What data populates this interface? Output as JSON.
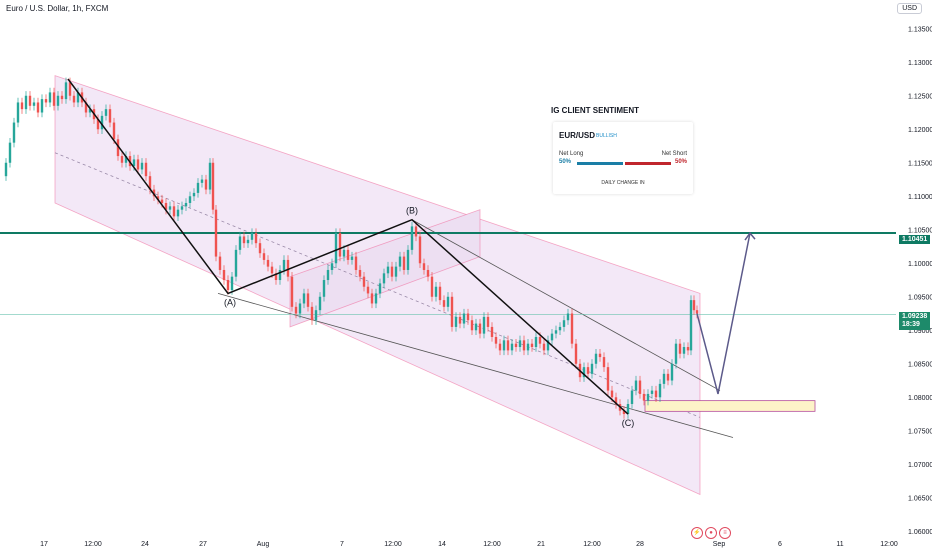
{
  "header": {
    "title": "Euro / U.S. Dollar, 1h, FXCM",
    "currency": "USD"
  },
  "chart_data": {
    "type": "candlestick",
    "title": "Euro / U.S. Dollar, 1h, FXCM",
    "y_ticks": [
      "1.13500",
      "1.13000",
      "1.12500",
      "1.12000",
      "1.11500",
      "1.11000",
      "1.10500",
      "1.10000",
      "1.09500",
      "1.09000",
      "1.08500",
      "1.08000",
      "1.07500",
      "1.07000",
      "1.06500",
      "1.06000"
    ],
    "x_ticks": [
      "17",
      "12:00",
      "24",
      "27",
      "Aug",
      "7",
      "12:00",
      "14",
      "12:00",
      "21",
      "12:00",
      "28",
      "Sep",
      "6",
      "11",
      "12:00"
    ],
    "ylim": [
      1.059,
      1.1375
    ],
    "horizontal_level": {
      "value": 1.10451,
      "label": "1.10451"
    },
    "current_price": {
      "value": 1.09238,
      "label": "1.09238",
      "countdown": "18:39"
    },
    "wave_labels": [
      "(A)",
      "(B)",
      "(C)"
    ],
    "price_path": [
      [
        0,
        1.113
      ],
      [
        6,
        1.115
      ],
      [
        10,
        1.118
      ],
      [
        14,
        1.121
      ],
      [
        18,
        1.124
      ],
      [
        22,
        1.123
      ],
      [
        26,
        1.125
      ],
      [
        30,
        1.1235
      ],
      [
        34,
        1.124
      ],
      [
        38,
        1.1225
      ],
      [
        42,
        1.1245
      ],
      [
        46,
        1.124
      ],
      [
        50,
        1.1255
      ],
      [
        54,
        1.1235
      ],
      [
        58,
        1.125
      ],
      [
        62,
        1.1245
      ],
      [
        66,
        1.127
      ],
      [
        70,
        1.125
      ],
      [
        74,
        1.124
      ],
      [
        78,
        1.1255
      ],
      [
        82,
        1.124
      ],
      [
        86,
        1.1225
      ],
      [
        90,
        1.123
      ],
      [
        94,
        1.1215
      ],
      [
        98,
        1.12
      ],
      [
        102,
        1.122
      ],
      [
        106,
        1.123
      ],
      [
        110,
        1.121
      ],
      [
        114,
        1.1185
      ],
      [
        118,
        1.116
      ],
      [
        122,
        1.115
      ],
      [
        126,
        1.116
      ],
      [
        130,
        1.1145
      ],
      [
        134,
        1.1155
      ],
      [
        138,
        1.114
      ],
      [
        142,
        1.115
      ],
      [
        146,
        1.113
      ],
      [
        150,
        1.111
      ],
      [
        154,
        1.11
      ],
      [
        158,
        1.1095
      ],
      [
        162,
        1.109
      ],
      [
        166,
        1.108
      ],
      [
        170,
        1.1085
      ],
      [
        174,
        1.107
      ],
      [
        178,
        1.108
      ],
      [
        182,
        1.1085
      ],
      [
        186,
        1.109
      ],
      [
        190,
        1.11
      ],
      [
        194,
        1.1105
      ],
      [
        198,
        1.112
      ],
      [
        202,
        1.1125
      ],
      [
        206,
        1.111
      ],
      [
        210,
        1.115
      ],
      [
        213,
        1.108
      ],
      [
        216,
        1.101
      ],
      [
        220,
        1.099
      ],
      [
        224,
        1.0975
      ],
      [
        228,
        1.096
      ],
      [
        232,
        1.098
      ],
      [
        236,
        1.102
      ],
      [
        240,
        1.104
      ],
      [
        244,
        1.103
      ],
      [
        248,
        1.1035
      ],
      [
        252,
        1.1045
      ],
      [
        256,
        1.103
      ],
      [
        260,
        1.1015
      ],
      [
        264,
        1.1005
      ],
      [
        268,
        1.0995
      ],
      [
        272,
        1.0985
      ],
      [
        276,
        1.0975
      ],
      [
        280,
        1.099
      ],
      [
        284,
        1.1005
      ],
      [
        288,
        1.098
      ],
      [
        292,
        1.0935
      ],
      [
        296,
        1.0925
      ],
      [
        300,
        1.094
      ],
      [
        304,
        1.0955
      ],
      [
        308,
        1.0935
      ],
      [
        312,
        1.0915
      ],
      [
        316,
        1.093
      ],
      [
        320,
        1.095
      ],
      [
        324,
        1.0975
      ],
      [
        328,
        1.099
      ],
      [
        332,
        1.1
      ],
      [
        336,
        1.1045
      ],
      [
        340,
        1.101
      ],
      [
        344,
        1.102
      ],
      [
        348,
        1.1005
      ],
      [
        352,
        1.101
      ],
      [
        356,
        1.099
      ],
      [
        360,
        1.098
      ],
      [
        364,
        1.0965
      ],
      [
        368,
        1.0955
      ],
      [
        372,
        1.094
      ],
      [
        376,
        1.0955
      ],
      [
        380,
        1.097
      ],
      [
        384,
        1.0985
      ],
      [
        388,
        1.0995
      ],
      [
        392,
        1.098
      ],
      [
        396,
        1.0995
      ],
      [
        400,
        1.101
      ],
      [
        404,
        1.099
      ],
      [
        408,
        1.102
      ],
      [
        412,
        1.1055
      ],
      [
        416,
        1.104
      ],
      [
        420,
        1.1
      ],
      [
        424,
        1.099
      ],
      [
        428,
        1.098
      ],
      [
        432,
        1.095
      ],
      [
        436,
        1.0965
      ],
      [
        440,
        1.0945
      ],
      [
        444,
        1.0935
      ],
      [
        448,
        1.095
      ],
      [
        452,
        1.0905
      ],
      [
        456,
        1.092
      ],
      [
        460,
        1.091
      ],
      [
        464,
        1.0925
      ],
      [
        468,
        1.0915
      ],
      [
        472,
        1.09
      ],
      [
        476,
        1.091
      ],
      [
        480,
        1.0895
      ],
      [
        484,
        1.092
      ],
      [
        488,
        1.0905
      ],
      [
        492,
        1.089
      ],
      [
        496,
        1.088
      ],
      [
        500,
        1.087
      ],
      [
        504,
        1.0885
      ],
      [
        508,
        1.087
      ],
      [
        512,
        1.088
      ],
      [
        516,
        1.0875
      ],
      [
        520,
        1.0885
      ],
      [
        524,
        1.087
      ],
      [
        528,
        1.088
      ],
      [
        532,
        1.0875
      ],
      [
        536,
        1.089
      ],
      [
        540,
        1.088
      ],
      [
        544,
        1.087
      ],
      [
        548,
        1.0885
      ],
      [
        552,
        1.0895
      ],
      [
        556,
        1.09
      ],
      [
        560,
        1.0905
      ],
      [
        564,
        1.0915
      ],
      [
        568,
        1.0925
      ],
      [
        572,
        1.088
      ],
      [
        576,
        1.085
      ],
      [
        580,
        1.083
      ],
      [
        584,
        1.0845
      ],
      [
        588,
        1.0835
      ],
      [
        592,
        1.085
      ],
      [
        596,
        1.0865
      ],
      [
        600,
        1.086
      ],
      [
        604,
        1.0845
      ],
      [
        608,
        1.081
      ],
      [
        612,
        1.08
      ],
      [
        616,
        1.079
      ],
      [
        620,
        1.078
      ],
      [
        624,
        1.0775
      ],
      [
        628,
        1.079
      ],
      [
        632,
        1.081
      ],
      [
        636,
        1.0825
      ],
      [
        640,
        1.0805
      ],
      [
        644,
        1.0795
      ],
      [
        648,
        1.0805
      ],
      [
        652,
        1.081
      ],
      [
        656,
        1.08
      ],
      [
        660,
        1.082
      ],
      [
        664,
        1.0835
      ],
      [
        668,
        1.0825
      ],
      [
        672,
        1.085
      ],
      [
        676,
        1.088
      ],
      [
        680,
        1.0865
      ],
      [
        684,
        1.0875
      ],
      [
        688,
        1.087
      ],
      [
        691,
        1.0945
      ],
      [
        694,
        1.093
      ],
      [
        697,
        1.0925
      ]
    ],
    "channels": [
      {
        "polygon": [
          [
            55,
            1.128
          ],
          [
            700,
            1.0955
          ],
          [
            700,
            1.0655
          ],
          [
            55,
            1.109
          ]
        ],
        "fill": "#f3e8f7"
      },
      {
        "polygon": [
          [
            290,
            1.098
          ],
          [
            480,
            1.108
          ],
          [
            480,
            1.101
          ],
          [
            290,
            1.0905
          ]
        ],
        "fill": "#eddff2"
      }
    ],
    "wave_path": [
      [
        68,
        1.1275
      ],
      [
        228,
        1.0955
      ],
      [
        412,
        1.1065
      ],
      [
        628,
        1.0775
      ]
    ],
    "trendlines": [
      {
        "from": [
          218,
          1.0955
        ],
        "to": [
          733,
          1.074
        ]
      },
      {
        "from": [
          412,
          1.1065
        ],
        "to": [
          720,
          1.081
        ]
      },
      {
        "from": [
          55,
          1.1165
        ],
        "to": [
          700,
          1.077
        ],
        "dashed": true
      }
    ],
    "projection": [
      [
        697,
        1.0925
      ],
      [
        718,
        1.0805
      ],
      [
        750,
        1.1045
      ]
    ],
    "target_box": {
      "x0": 645,
      "x1": 815,
      "y0": 1.0795,
      "y1": 1.0782
    },
    "colors": {
      "up": "#26a69a",
      "down": "#ef5350",
      "level": "#0e7a63",
      "channel_edge": "#f06fa0"
    }
  },
  "sentiment": {
    "title": "IG CLIENT SENTIMENT",
    "pair": "EUR/USD",
    "bias": "BULLISH",
    "net_long_label": "Net Long",
    "net_short_label": "Net Short",
    "net_long_pct": "50%",
    "net_short_pct": "50%",
    "daily_change": "DAILY CHANGE IN"
  }
}
